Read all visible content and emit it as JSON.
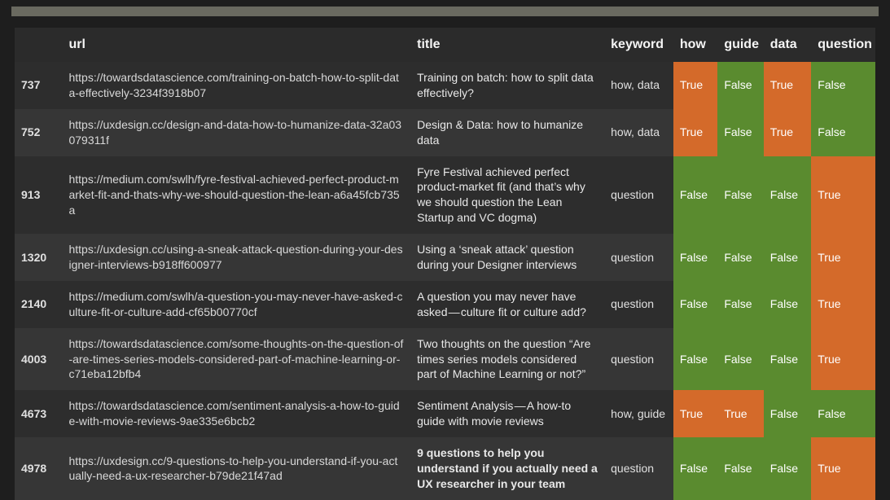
{
  "colors": {
    "bg": "#1e1e1e",
    "table_bg": "#2b2b2b",
    "row_even": "#2d2d2d",
    "row_odd": "#363636",
    "true_bg": "#d46a2a",
    "false_bg": "#5a8b2f",
    "topbar": "#6a6a60"
  },
  "columns": [
    "",
    "url",
    "title",
    "keyword",
    "how",
    "guide",
    "data",
    "question"
  ],
  "true_label": "True",
  "false_label": "False",
  "rows": [
    {
      "rn": "737",
      "url": "https://towardsdatascience.com/training-on-batch-how-to-split-data-effectively-3234f3918b07",
      "title": "Training on batch: how to split data effectively?",
      "keyword": "how, data",
      "how": true,
      "guide": false,
      "data": true,
      "question": false,
      "title_bold": false
    },
    {
      "rn": "752",
      "url": "https://uxdesign.cc/design-and-data-how-to-humanize-data-32a03079311f",
      "title": "Design & Data: how to humanize data",
      "keyword": "how, data",
      "how": true,
      "guide": false,
      "data": true,
      "question": false,
      "title_bold": false
    },
    {
      "rn": "913",
      "url": "https://medium.com/swlh/fyre-festival-achieved-perfect-product-market-fit-and-thats-why-we-should-question-the-lean-a6a45fcb735a",
      "title": "Fyre Festival achieved perfect product-market fit (and that’s why we should question the Lean Startup and VC dogma)",
      "keyword": "question",
      "how": false,
      "guide": false,
      "data": false,
      "question": true,
      "title_bold": false
    },
    {
      "rn": "1320",
      "url": "https://uxdesign.cc/using-a-sneak-attack-question-during-your-designer-interviews-b918ff600977",
      "title": "Using a ‘sneak attack’ question during your Designer interviews",
      "keyword": "question",
      "how": false,
      "guide": false,
      "data": false,
      "question": true,
      "title_bold": false
    },
    {
      "rn": "2140",
      "url": "https://medium.com/swlh/a-question-you-may-never-have-asked-culture-fit-or-culture-add-cf65b00770cf",
      "title": "A question you may never have asked — culture fit or culture add?",
      "keyword": "question",
      "how": false,
      "guide": false,
      "data": false,
      "question": true,
      "title_bold": false
    },
    {
      "rn": "4003",
      "url": "https://towardsdatascience.com/some-thoughts-on-the-question-of-are-times-series-models-considered-part-of-machine-learning-or-c71eba12bfb4",
      "title": "Two thoughts on the question “Are times series models considered part of Machine Learning or not?”",
      "keyword": "question",
      "how": false,
      "guide": false,
      "data": false,
      "question": true,
      "title_bold": false
    },
    {
      "rn": "4673",
      "url": "https://towardsdatascience.com/sentiment-analysis-a-how-to-guide-with-movie-reviews-9ae335e6bcb2",
      "title": "Sentiment Analysis — A how-to guide with movie reviews",
      "keyword": "how, guide",
      "how": true,
      "guide": true,
      "data": false,
      "question": false,
      "title_bold": false
    },
    {
      "rn": "4978",
      "url": "https://uxdesign.cc/9-questions-to-help-you-understand-if-you-actually-need-a-ux-researcher-b79de21f47ad",
      "title": "9 questions to help you understand if you actually need a UX researcher in your team",
      "keyword": "question",
      "how": false,
      "guide": false,
      "data": false,
      "question": true,
      "title_bold": true
    }
  ]
}
